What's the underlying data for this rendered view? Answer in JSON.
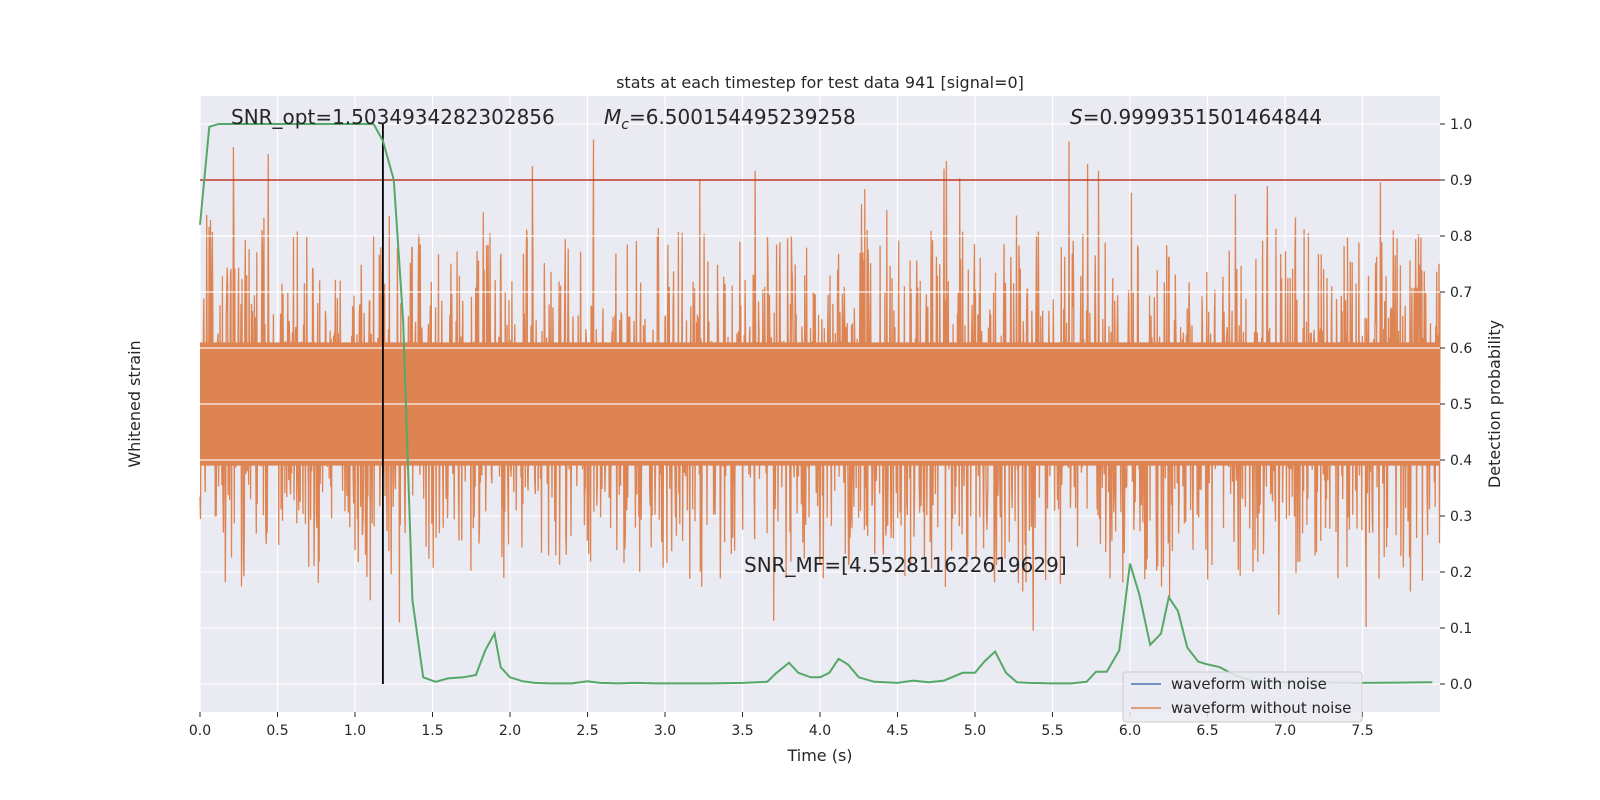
{
  "chart_data": {
    "type": "line",
    "title": "stats at each timestep for test data 941 [signal=0]",
    "xlabel": "Time (s)",
    "ylabel_left": "Whitened strain",
    "ylabel_right": "Detection probability",
    "xlim": [
      0,
      8.0
    ],
    "ylim_right": [
      -0.05,
      1.05
    ],
    "x_ticks": [
      0.0,
      0.5,
      1.0,
      1.5,
      2.0,
      2.5,
      3.0,
      3.5,
      4.0,
      4.5,
      5.0,
      5.5,
      6.0,
      6.5,
      7.0,
      7.5
    ],
    "x_tick_labels": [
      "0.0",
      "0.5",
      "1.0",
      "1.5",
      "2.0",
      "2.5",
      "3.0",
      "3.5",
      "4.0",
      "4.5",
      "5.0",
      "5.5",
      "6.0",
      "6.5",
      "7.0",
      "7.5"
    ],
    "right_ticks": [
      0.0,
      0.1,
      0.2,
      0.3,
      0.4,
      0.5,
      0.6,
      0.7,
      0.8,
      0.9,
      1.0
    ],
    "right_tick_labels": [
      "0.0",
      "0.1",
      "0.2",
      "0.3",
      "0.4",
      "0.5",
      "0.6",
      "0.7",
      "0.8",
      "0.9",
      "1.0"
    ],
    "threshold": 0.9,
    "marker_time": 1.18,
    "grid": true,
    "legend_position": "lower-right",
    "annotations": {
      "snr_opt": "SNR_opt=1.5034934282302856",
      "mc_symbol": "M",
      "mc_sub": "c",
      "mc_value": "=6.500154495239258",
      "s_symbol": "S",
      "s_value": "=0.9999351501464844",
      "snr_mf": "SNR_MF=[4.552811622619629]"
    },
    "series": [
      {
        "name": "waveform with noise",
        "color": "#4c72b0",
        "values_note": ""
      },
      {
        "name": "waveform without noise",
        "color": "#dd8452",
        "center": 0.5,
        "typical_band": [
          0.3,
          0.7
        ],
        "extreme_range": [
          0.09,
          1.0
        ]
      },
      {
        "name": "",
        "color": "#55a868",
        "x": [
          0.0,
          0.06,
          0.12,
          0.2,
          0.3,
          0.5,
          0.7,
          0.9,
          1.05,
          1.12,
          1.18,
          1.25,
          1.31,
          1.37,
          1.44,
          1.52,
          1.6,
          1.7,
          1.78,
          1.84,
          1.9,
          1.94,
          2.0,
          2.08,
          2.16,
          2.25,
          2.4,
          2.5,
          2.58,
          2.7,
          2.8,
          2.95,
          3.1,
          3.3,
          3.5,
          3.66,
          3.72,
          3.8,
          3.86,
          3.94,
          4.0,
          4.06,
          4.12,
          4.18,
          4.25,
          4.35,
          4.5,
          4.6,
          4.7,
          4.8,
          4.92,
          5.0,
          5.06,
          5.13,
          5.2,
          5.27,
          5.35,
          5.5,
          5.62,
          5.72,
          5.78,
          5.85,
          5.93,
          6.0,
          6.06,
          6.13,
          6.2,
          6.25,
          6.31,
          6.37,
          6.44,
          6.5,
          6.58,
          6.68,
          6.8,
          7.0,
          7.5,
          7.95
        ],
        "values": [
          0.82,
          0.995,
          1.0,
          1.0,
          1.0,
          1.0,
          1.0,
          1.0,
          1.0,
          1.0,
          0.97,
          0.9,
          0.65,
          0.15,
          0.012,
          0.004,
          0.01,
          0.012,
          0.016,
          0.06,
          0.09,
          0.03,
          0.012,
          0.005,
          0.002,
          0.001,
          0.001,
          0.005,
          0.002,
          0.001,
          0.002,
          0.001,
          0.001,
          0.001,
          0.002,
          0.004,
          0.02,
          0.038,
          0.02,
          0.012,
          0.012,
          0.02,
          0.045,
          0.035,
          0.012,
          0.004,
          0.002,
          0.006,
          0.003,
          0.006,
          0.02,
          0.02,
          0.04,
          0.058,
          0.02,
          0.003,
          0.002,
          0.001,
          0.001,
          0.004,
          0.022,
          0.022,
          0.06,
          0.215,
          0.16,
          0.07,
          0.09,
          0.155,
          0.13,
          0.065,
          0.04,
          0.035,
          0.03,
          0.015,
          0.005,
          0.003,
          0.002,
          0.003
        ]
      }
    ]
  }
}
